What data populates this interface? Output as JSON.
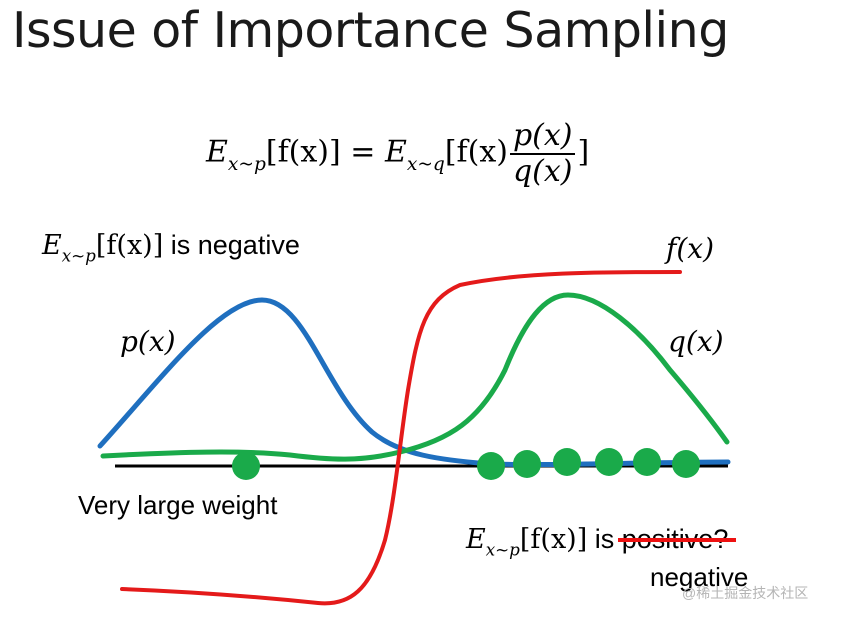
{
  "title": "Issue of Importance Sampling",
  "equation": {
    "E": "E",
    "sub_p": "x~p",
    "sub_q": "x~q",
    "lhs_body": "[f(x)] = ",
    "rhs_body": "[f(x)",
    "num": "p(x)",
    "den": "q(x)",
    "close": "]"
  },
  "labels": {
    "top_left_expr": "[f(x)]",
    "top_left_text": " is negative",
    "fx": "f(x)",
    "px": "p(x)",
    "qx": "q(x)",
    "very_large_weight": "Very large weight",
    "bottom_expr": "[f(x)]",
    "bottom_is": " is ",
    "positive_struck": "positive?",
    "negative_correction": "negative"
  },
  "colors": {
    "p_curve": "#1f6fbf",
    "q_curve": "#1aaa4a",
    "f_curve": "#e41a1a",
    "axis": "#000000",
    "samples": "#1aaa4a",
    "strike": "#ee1111"
  },
  "watermark": "@稀土掘金技术社区"
}
